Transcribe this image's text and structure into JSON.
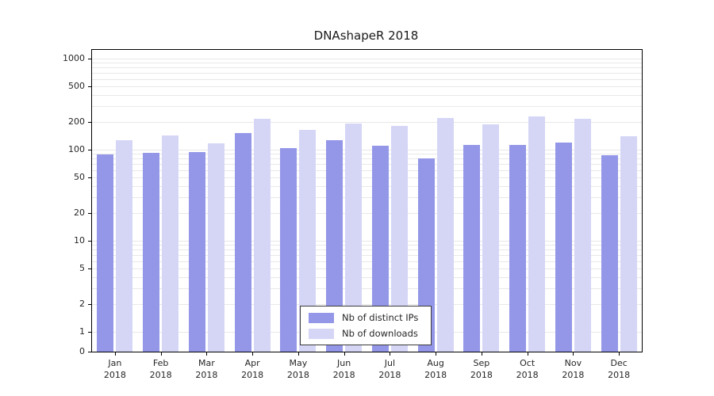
{
  "chart_data": {
    "type": "bar",
    "title": "DNAshapeR 2018",
    "yscale": "log",
    "grid": "horizontal-minor-log",
    "categories": [
      "Jan",
      "Feb",
      "Mar",
      "Apr",
      "May",
      "Jun",
      "Jul",
      "Aug",
      "Sep",
      "Oct",
      "Nov",
      "Dec"
    ],
    "category_year": "2018",
    "series": [
      {
        "name": "Nb of distinct IPs",
        "color": "#9497e8",
        "values": [
          88,
          92,
          94,
          152,
          105,
          128,
          110,
          80,
          113,
          112,
          120,
          87
        ]
      },
      {
        "name": "Nb of downloads",
        "color": "#d5d6f6",
        "values": [
          126,
          143,
          117,
          218,
          166,
          192,
          183,
          222,
          189,
          232,
          218,
          142
        ]
      }
    ],
    "yticks": [
      1000,
      500,
      200,
      100,
      50,
      20,
      10,
      5,
      2,
      1,
      0
    ],
    "ylim": [
      0,
      1000
    ],
    "legend": {
      "position": "bottom-center"
    }
  },
  "colors": {
    "background": "#ffffff",
    "axis": "#000000",
    "grid": "#e8e8e8",
    "text": "#262626"
  }
}
